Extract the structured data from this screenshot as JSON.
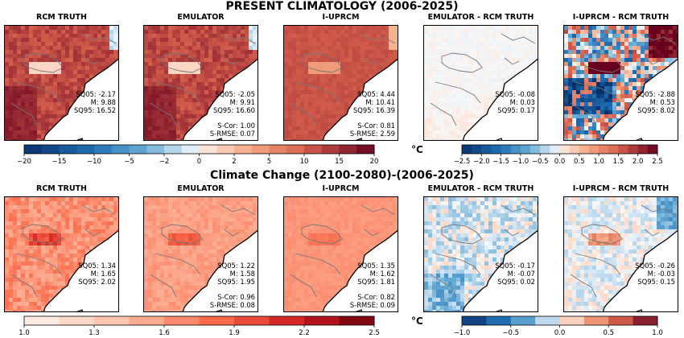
{
  "rows": [
    {
      "title": "PRESENT CLIMATOLOGY (2006-2025)",
      "panels": [
        {
          "title": "RCM TRUTH",
          "field": "abs_hot",
          "stats": [
            "SQ05: -2.17",
            "M: 9.88",
            "SQ95: 16.52"
          ],
          "metrics": []
        },
        {
          "title": "EMULATOR",
          "field": "abs_hot",
          "stats": [
            "SQ05: -2.05",
            "M: 9.91",
            "SQ95: 16.60"
          ],
          "metrics": [
            "S-Cor: 1.00",
            "S-RMSE: 0.07"
          ]
        },
        {
          "title": "I-UPRCM",
          "field": "abs_smooth",
          "stats": [
            "SQ05: 4.44",
            "M: 10.41",
            "SQ95: 16.39"
          ],
          "metrics": [
            "S-Cor: 0.81",
            "S-RMSE: 2.59"
          ]
        },
        {
          "title": "EMULATOR - RCM TRUTH",
          "field": "diff_small",
          "stats": [
            "SQ05: -0.08",
            "M: 0.03",
            "SQ95: 0.17"
          ],
          "metrics": []
        },
        {
          "title": "I-UPRCM - RCM TRUTH",
          "field": "diff_large",
          "stats": [
            "SQ05: -2.88",
            "M: 0.53",
            "SQ95: 8.02"
          ],
          "metrics": []
        }
      ],
      "colorbars": [
        {
          "id": "present-abs",
          "ticks": [
            "−20",
            "−15",
            "−10",
            "−5",
            "−2",
            "0",
            "2",
            "5",
            "10",
            "15",
            "20"
          ],
          "tick_values": [
            -20,
            -15,
            -10,
            -5,
            -2,
            0,
            2,
            5,
            10,
            15,
            20
          ],
          "range": [
            -20,
            20
          ],
          "scheme": "diverging"
        },
        {
          "id": "present-diff",
          "ticks": [
            "−2.5",
            "−2.0",
            "−1.5",
            "−1.0",
            "−0.5",
            "0.0",
            "0.5",
            "1.0",
            "1.5",
            "2.0",
            "2.5"
          ],
          "tick_values": [
            -2.5,
            -2.0,
            -1.5,
            -1.0,
            -0.5,
            0.0,
            0.5,
            1.0,
            1.5,
            2.0,
            2.5
          ],
          "range": [
            -2.5,
            2.5
          ],
          "scheme": "diverging"
        }
      ],
      "unit": "°C"
    },
    {
      "title": "Climate Change (2100-2080)-(2006-2025)",
      "panels": [
        {
          "title": "RCM TRUTH",
          "field": "cc_truth",
          "stats": [
            "SQ05: 1.34",
            "M: 1.65",
            "SQ95: 2.02"
          ],
          "metrics": []
        },
        {
          "title": "EMULATOR",
          "field": "cc_emu",
          "stats": [
            "SQ05: 1.22",
            "M: 1.58",
            "SQ95: 1.95"
          ],
          "metrics": [
            "S-Cor: 0.96",
            "S-RMSE: 0.08"
          ]
        },
        {
          "title": "I-UPRCM",
          "field": "cc_uprcm",
          "stats": [
            "SQ05: 1.35",
            "M: 1.62",
            "SQ95: 1.81"
          ],
          "metrics": [
            "S-Cor: 0.82",
            "S-RMSE: 0.09"
          ]
        },
        {
          "title": "EMULATOR - RCM TRUTH",
          "field": "cc_diff_small",
          "stats": [
            "SQ05: -0.17",
            "M: -0.07",
            "SQ95: 0.02"
          ],
          "metrics": []
        },
        {
          "title": "I-UPRCM - RCM TRUTH",
          "field": "cc_diff_mid",
          "stats": [
            "SQ05: -0.26",
            "M: -0.03",
            "SQ95: 0.15"
          ],
          "metrics": []
        }
      ],
      "colorbars": [
        {
          "id": "cc-abs",
          "ticks": [
            "1.0",
            "1.3",
            "1.6",
            "1.9",
            "2.2",
            "2.5"
          ],
          "tick_values": [
            1.0,
            1.3,
            1.6,
            1.9,
            2.2,
            2.5
          ],
          "range": [
            1.0,
            2.5
          ],
          "scheme": "reds"
        },
        {
          "id": "cc-diff",
          "ticks": [
            "−1.0",
            "−0.5",
            "0.0",
            "0.5",
            "1.0"
          ],
          "tick_values": [
            -1.0,
            -0.5,
            0.0,
            0.5,
            1.0
          ],
          "range": [
            -1.0,
            1.0
          ],
          "scheme": "diverging"
        }
      ],
      "unit": "°C"
    }
  ],
  "chart_data": [
    {
      "type": "heatmap",
      "title": "PRESENT CLIMATOLOGY (2006-2025)",
      "panels": [
        "RCM TRUTH",
        "EMULATOR",
        "I-UPRCM",
        "EMULATOR - RCM TRUTH",
        "I-UPRCM - RCM TRUTH"
      ],
      "colorbar_ranges": [
        [
          -20,
          20
        ],
        [
          -2.5,
          2.5
        ]
      ],
      "unit": "°C"
    },
    {
      "type": "heatmap",
      "title": "Climate Change (2100-2080)-(2006-2025)",
      "panels": [
        "RCM TRUTH",
        "EMULATOR",
        "I-UPRCM",
        "EMULATOR - RCM TRUTH",
        "I-UPRCM - RCM TRUTH"
      ],
      "colorbar_ranges": [
        [
          1.0,
          2.5
        ],
        [
          -1.0,
          1.0
        ]
      ],
      "unit": "°C"
    }
  ]
}
